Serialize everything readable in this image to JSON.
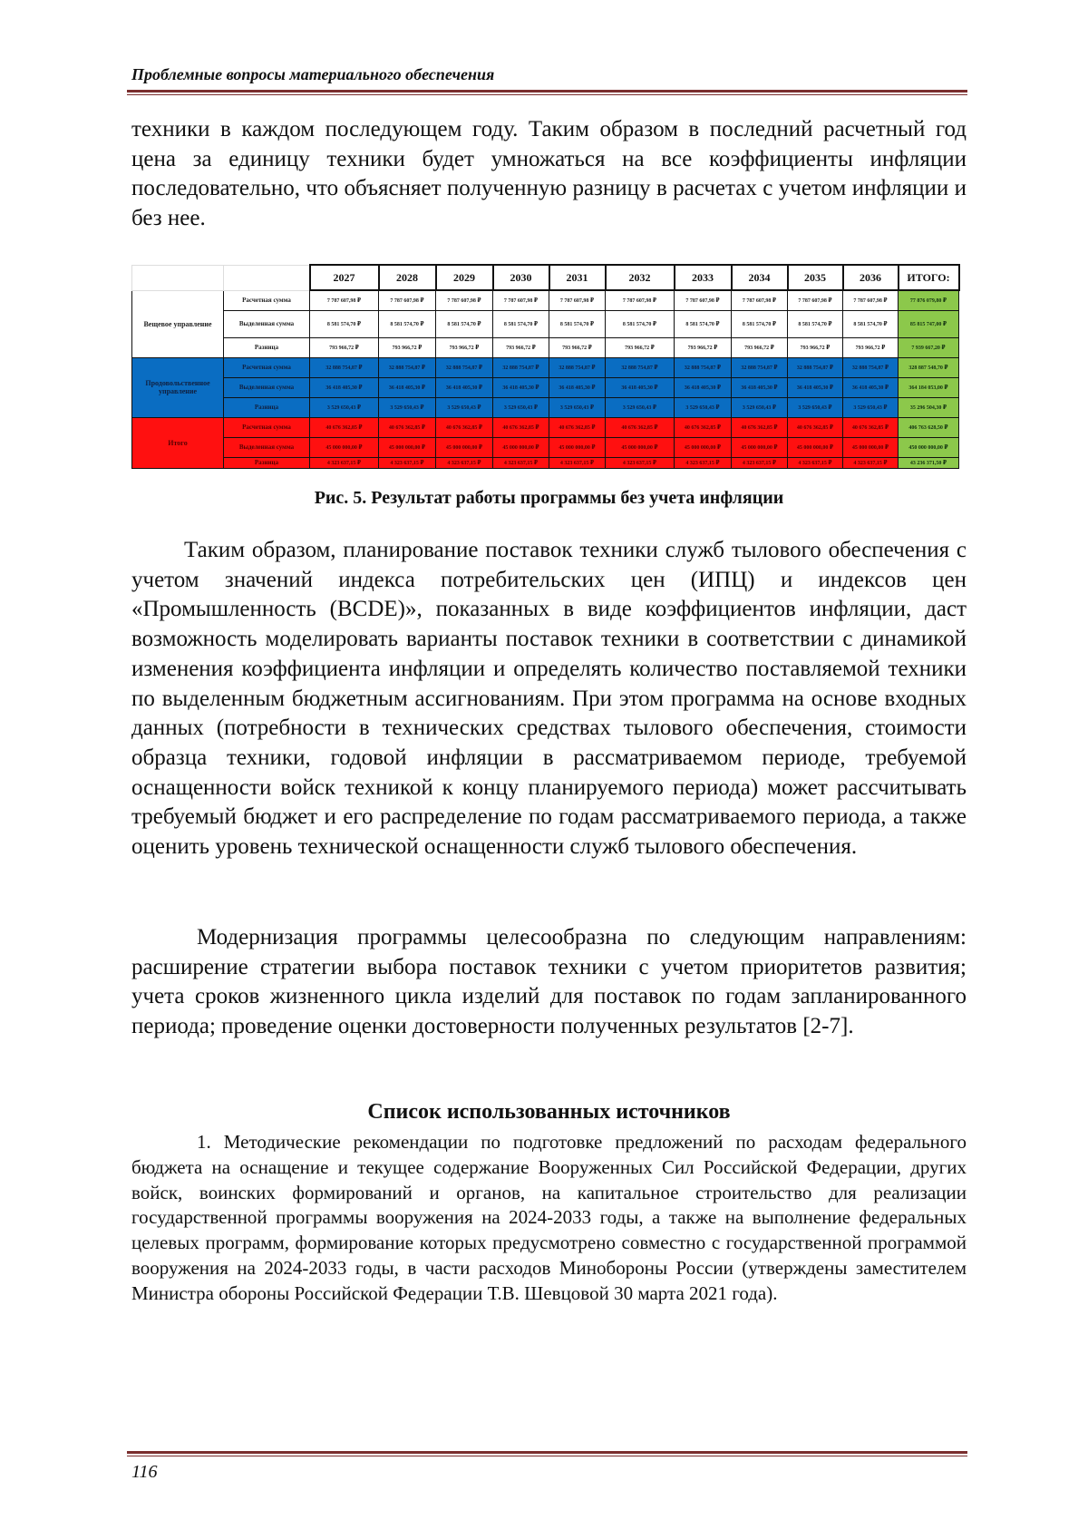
{
  "header": {
    "title": "Проблемные вопросы материального обеспечения"
  },
  "intro": "техники в каждом последующем году. Таким образом в последний расчетный год цена за единицу техники будет умножаться на все коэффициенты инфляции последовательно, что объясняет полученную разницу в расчетах с учетом инфляции и без нее.",
  "table": {
    "years": [
      "2027",
      "2028",
      "2029",
      "2030",
      "2031",
      "2032",
      "2033",
      "2034",
      "2035",
      "2036"
    ],
    "total_label": "ИТОГО:",
    "groups": [
      {
        "name": "Вещевое управление",
        "color": "#ffffff",
        "rows": [
          {
            "label": "Расчетная сумма",
            "value": "7 787 607,98 ₽",
            "total": "77 876 079,80 ₽"
          },
          {
            "label": "Выделенная сумма",
            "value": "8 581 574,70 ₽",
            "total": "85 815 747,00 ₽"
          },
          {
            "label": "Разница",
            "value": "793 966,72 ₽",
            "total": "7 939 667,20 ₽"
          }
        ]
      },
      {
        "name": "Продовольственное управление",
        "color": "#0a6dc2",
        "rows": [
          {
            "label": "Расчетная сумма",
            "value": "32 888 754,87 ₽",
            "total": "328 887 548,70 ₽"
          },
          {
            "label": "Выделенная сумма",
            "value": "36 418 405,30 ₽",
            "total": "364 184 053,00 ₽"
          },
          {
            "label": "Разница",
            "value": "3 529 650,43 ₽",
            "total": "35 296 504,30 ₽"
          }
        ]
      },
      {
        "name": "Итого",
        "color": "#ff1010",
        "rows": [
          {
            "label": "Расчетная сумма",
            "value": "40 676 362,85 ₽",
            "total": "406 763 628,50 ₽"
          },
          {
            "label": "Выделенная сумма",
            "value": "45 000 000,00 ₽",
            "total": "450 000 000,00 ₽"
          },
          {
            "label": "Разница",
            "value": "4 323 637,15 ₽",
            "total": "43 236 371,50 ₽"
          }
        ]
      }
    ]
  },
  "caption": "Рис. 5. Результат работы программы без учета инфляции",
  "para1": "Таким образом, планирование поставок техники служб тылового обеспечения с учетом значений индекса потребительских цен (ИПЦ) и индексов цен «Промышленность (BCDE)», показанных в виде коэффициентов инфляции, даст возможность моделировать варианты поставок техники в соответствии с динамикой изменения коэффициента инфляции и определять количество поставляемой техники по выделенным бюджетным ассигнованиям. При этом программа на основе входных данных (потребности в технических средствах тылового обеспечения, стоимости образца техники, годовой инфляции в рассматриваемом периоде, требуемой оснащенности войск техникой к концу планируемого периода) может рассчитывать требуемый бюджет и его распределение по годам рассматриваемого периода, а также оценить уровень технической оснащенности служб тылового обеспечения.",
  "para2": "Модернизация программы целесообразна по следующим направлениям: расширение стратегии выбора поставок техники с учетом приоритетов развития; учета сроков жизненного цикла изделий для поставок по годам запланированного периода; проведение оценки достоверности полученных результатов [2-7].",
  "references": {
    "title": "Список использованных источников",
    "items": [
      "1. Методические рекомендации по подготовке предложений по расходам федерального бюджета на оснащение и текущее содержание Вооруженных Сил Российской Федерации, других войск, воинских формирований и органов, на капитальное строительство для реализации государственной программы вооружения на 2024-2033 годы, а также на выполнение федеральных целевых программ, формирование которых предусмотрено совместно с государственной программой вооружения на 2024-2033 годы, в части расходов Минобороны России (утверждены заместителем Министра обороны Российской Федерации Т.В. Шевцовой 30 марта 2021 года)."
    ]
  },
  "footer": {
    "page_number": "116"
  }
}
